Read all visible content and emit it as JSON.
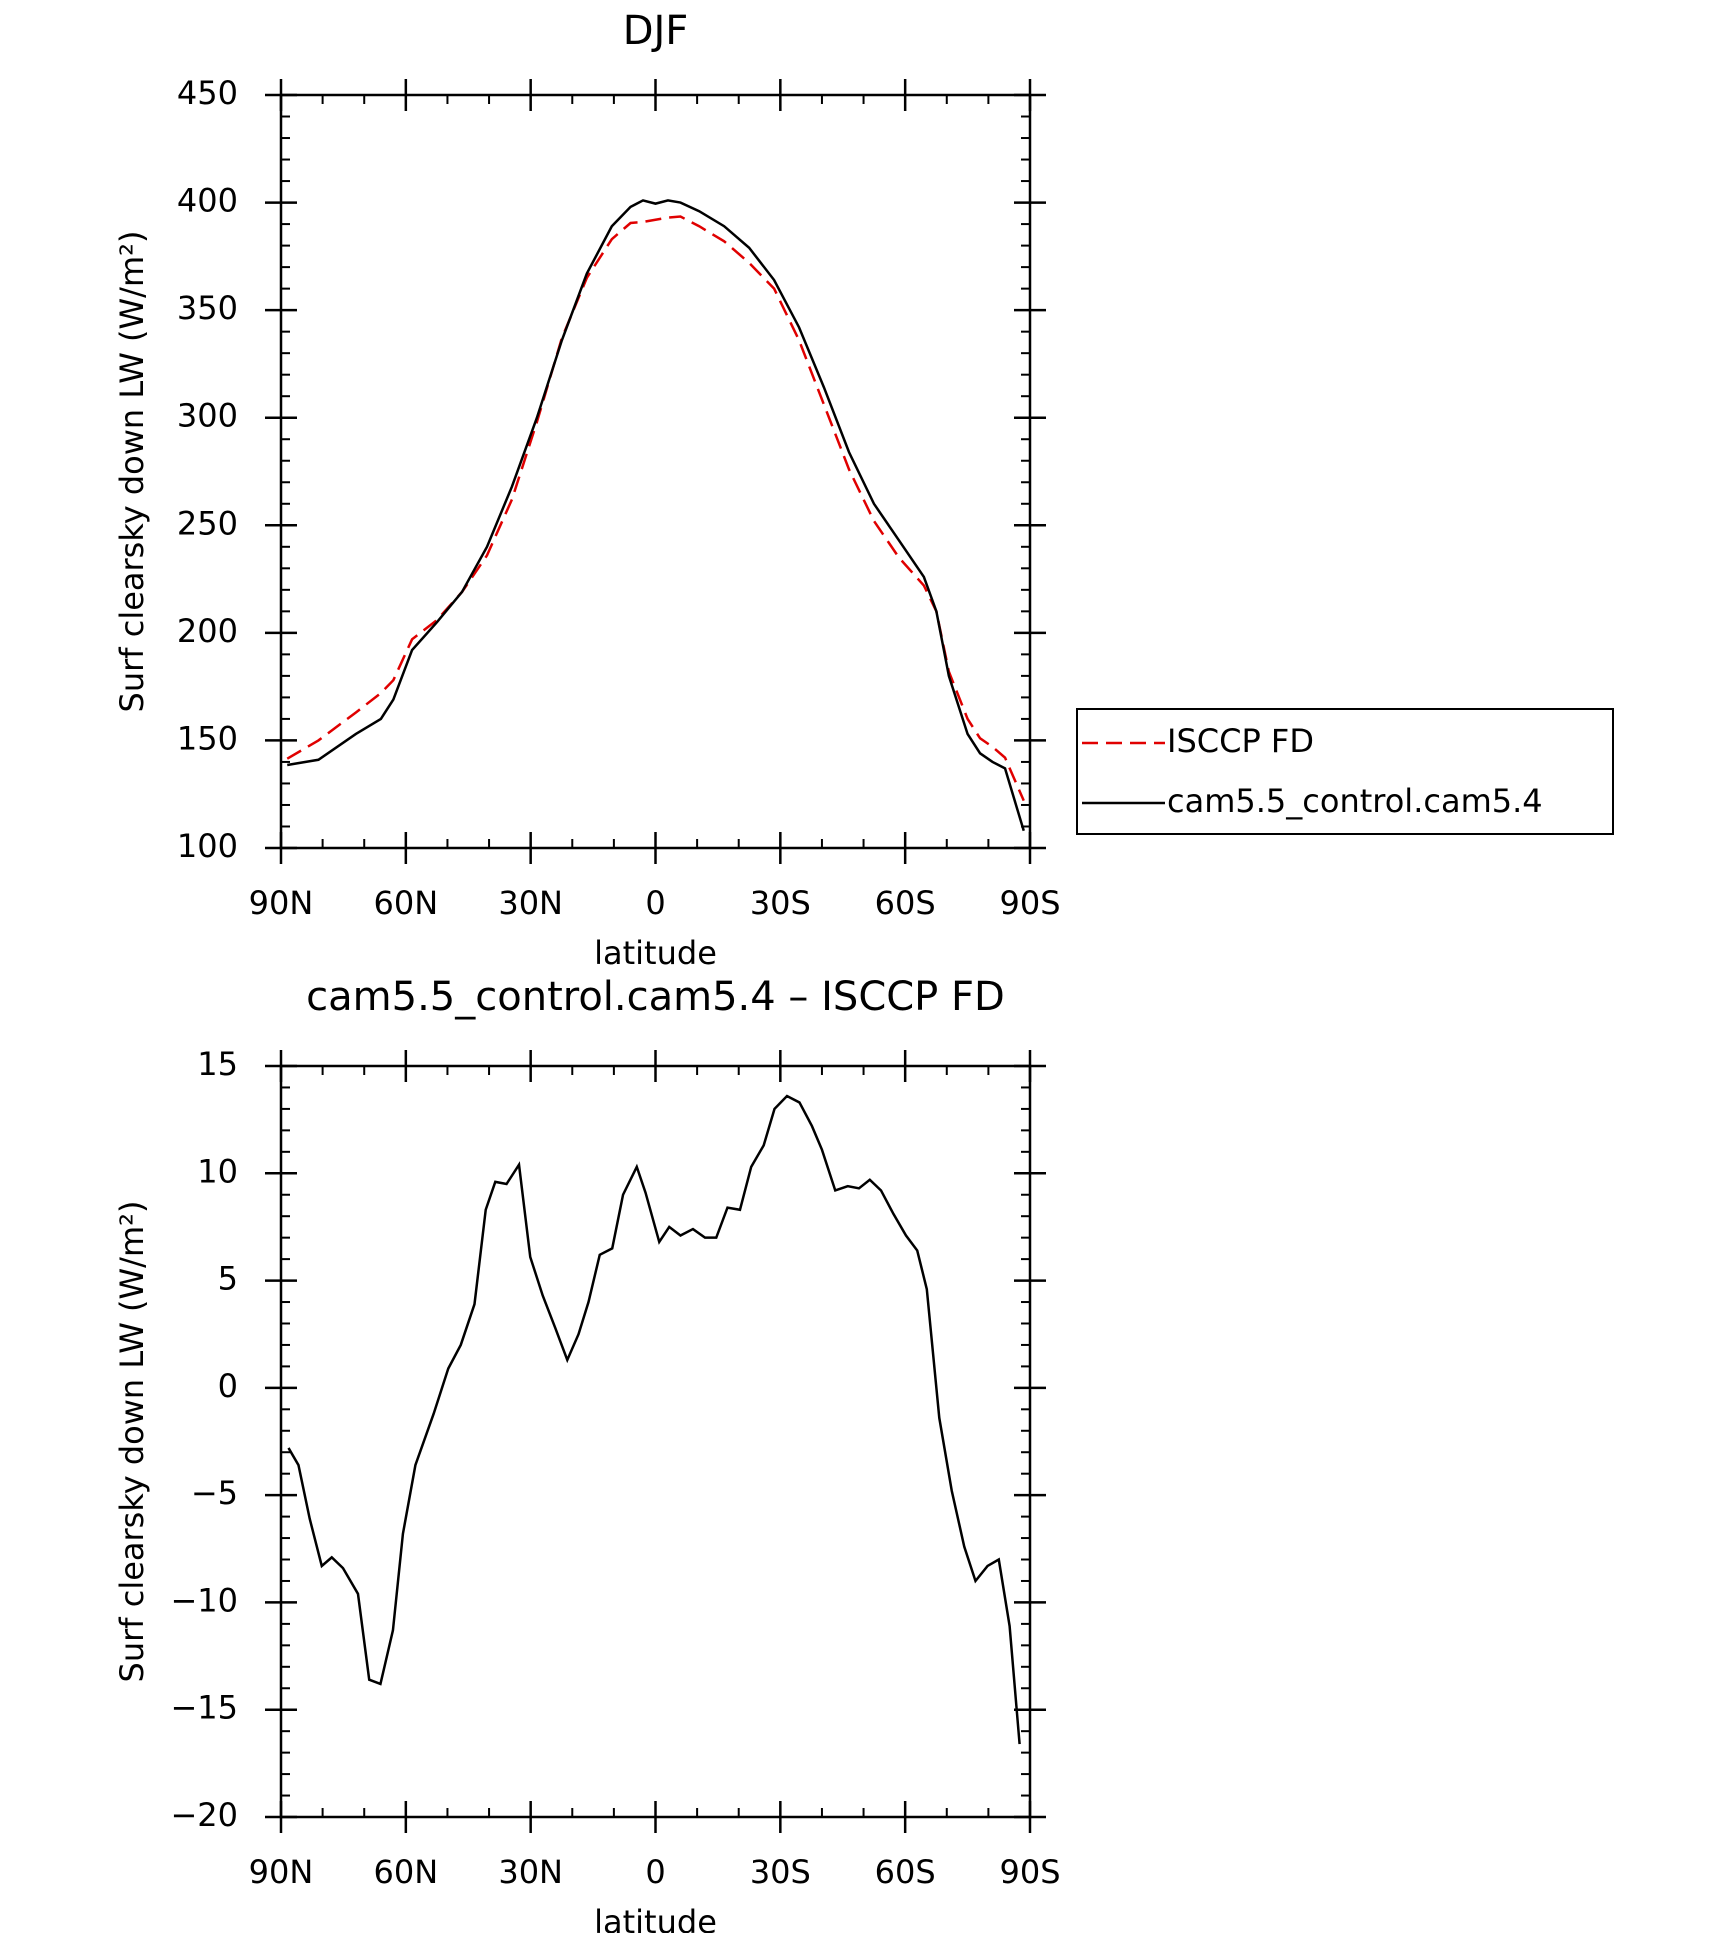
{
  "chart_data": [
    {
      "type": "line",
      "title": "DJF",
      "xlabel": "latitude",
      "ylabel": "Surf clearsky down LW (W/m²)",
      "x": [
        88.5,
        81,
        72,
        66,
        63,
        58.5,
        52.5,
        46.5,
        40.5,
        34.5,
        28.5,
        22.5,
        16.5,
        10.5,
        6,
        3,
        0,
        -3,
        -6,
        -10.5,
        -16.5,
        -22.5,
        -28.5,
        -34.5,
        -40.5,
        -46.5,
        -52.5,
        -58.5,
        -64.5,
        -67.5,
        -70.5,
        -75,
        -78,
        -81,
        -84,
        -88.5
      ],
      "series": [
        {
          "name": "ISCCP FD",
          "color": "#e00000",
          "style": "dashed",
          "values": [
            141.5,
            150,
            163,
            172,
            178,
            197,
            206,
            219,
            236,
            262,
            298,
            337,
            365,
            383,
            390.5,
            391,
            392,
            393,
            393.5,
            389,
            382,
            372,
            360,
            336,
            306,
            276,
            252,
            235,
            222,
            210,
            182,
            160,
            151,
            147,
            142,
            122
          ]
        },
        {
          "name": "cam5.5_control.cam5.4",
          "color": "#000000",
          "style": "solid",
          "values": [
            138.6,
            141,
            153,
            160,
            169,
            192,
            205,
            219,
            240,
            268,
            300,
            336,
            367,
            389,
            398,
            401,
            399.5,
            401,
            400,
            396,
            389,
            379,
            364,
            342,
            314,
            284,
            260,
            243,
            226,
            210,
            180,
            153,
            144,
            140,
            137,
            108
          ]
        }
      ],
      "xlim": [
        90,
        -90
      ],
      "xticks": [
        {
          "value": 90,
          "label": "90N"
        },
        {
          "value": 60,
          "label": "60N"
        },
        {
          "value": 30,
          "label": "30N"
        },
        0,
        {
          "value": -30,
          "label": "30S"
        },
        {
          "value": -60,
          "label": "60S"
        },
        {
          "value": -90,
          "label": "90S"
        }
      ],
      "ylim": [
        100,
        450
      ],
      "yticks": [
        100,
        150,
        200,
        250,
        300,
        350,
        400,
        450
      ],
      "legend": "right"
    },
    {
      "type": "line",
      "title": "cam5.5_control.cam5.4 – ISCCP FD",
      "xlabel": "latitude",
      "ylabel": "Surf clearsky down LW (W/m²)",
      "x": [
        88.2,
        85.8,
        83.1,
        80.2,
        77.8,
        75.1,
        71.5,
        68.8,
        66.1,
        63.1,
        60.7,
        57.7,
        53.3,
        49.8,
        46.8,
        43.5,
        40.8,
        38.5,
        35.8,
        32.8,
        30.1,
        27.1,
        24.1,
        21.2,
        18.5,
        16.1,
        13.4,
        10.4,
        7.8,
        4.5,
        2.4,
        -0.9,
        -3.3,
        -6.0,
        -9.0,
        -11.9,
        -14.6,
        -17.3,
        -20.3,
        -23.0,
        -26.0,
        -28.6,
        -31.6,
        -34.6,
        -37.6,
        -40.0,
        -43.2,
        -46.2,
        -48.9,
        -51.5,
        -54.2,
        -57.2,
        -60.2,
        -62.9,
        -65.2,
        -68.2,
        -71.2,
        -74.2,
        -76.9,
        -79.8,
        -82.5,
        -85.1,
        -87.5
      ],
      "series": [
        {
          "color": "#000000",
          "style": "solid",
          "values": [
            -2.8,
            -3.6,
            -6.1,
            -8.3,
            -7.9,
            -8.4,
            -9.6,
            -13.6,
            -13.8,
            -11.3,
            -6.8,
            -3.6,
            -1.2,
            0.9,
            2,
            3.9,
            8.3,
            9.6,
            9.5,
            10.4,
            6.1,
            4.3,
            2.8,
            1.3,
            2.5,
            4,
            6.2,
            6.5,
            9,
            10.3,
            9.1,
            6.8,
            7.5,
            7.1,
            7.4,
            7,
            7,
            8.4,
            8.3,
            10.3,
            11.3,
            13,
            13.6,
            13.3,
            12.2,
            11.1,
            9.2,
            9.4,
            9.3,
            9.7,
            9.2,
            8.1,
            7.1,
            6.4,
            4.6,
            -1.4,
            -4.8,
            -7.4,
            -9,
            -8.3,
            -8,
            -11.1,
            -16.6
          ]
        }
      ],
      "xlim": [
        90,
        -90
      ],
      "xticks": [
        {
          "value": 90,
          "label": "90N"
        },
        {
          "value": 60,
          "label": "60N"
        },
        {
          "value": 30,
          "label": "30N"
        },
        0,
        {
          "value": -30,
          "label": "30S"
        },
        {
          "value": -60,
          "label": "60S"
        },
        {
          "value": -90,
          "label": "90S"
        }
      ],
      "ylim": [
        -20,
        15
      ],
      "yticks": [
        {
          "value": -20,
          "label": "−20"
        },
        {
          "value": -15,
          "label": "−15"
        },
        {
          "value": -10,
          "label": "−10"
        },
        {
          "value": -5,
          "label": "−5"
        },
        0,
        5,
        10,
        15
      ]
    }
  ]
}
